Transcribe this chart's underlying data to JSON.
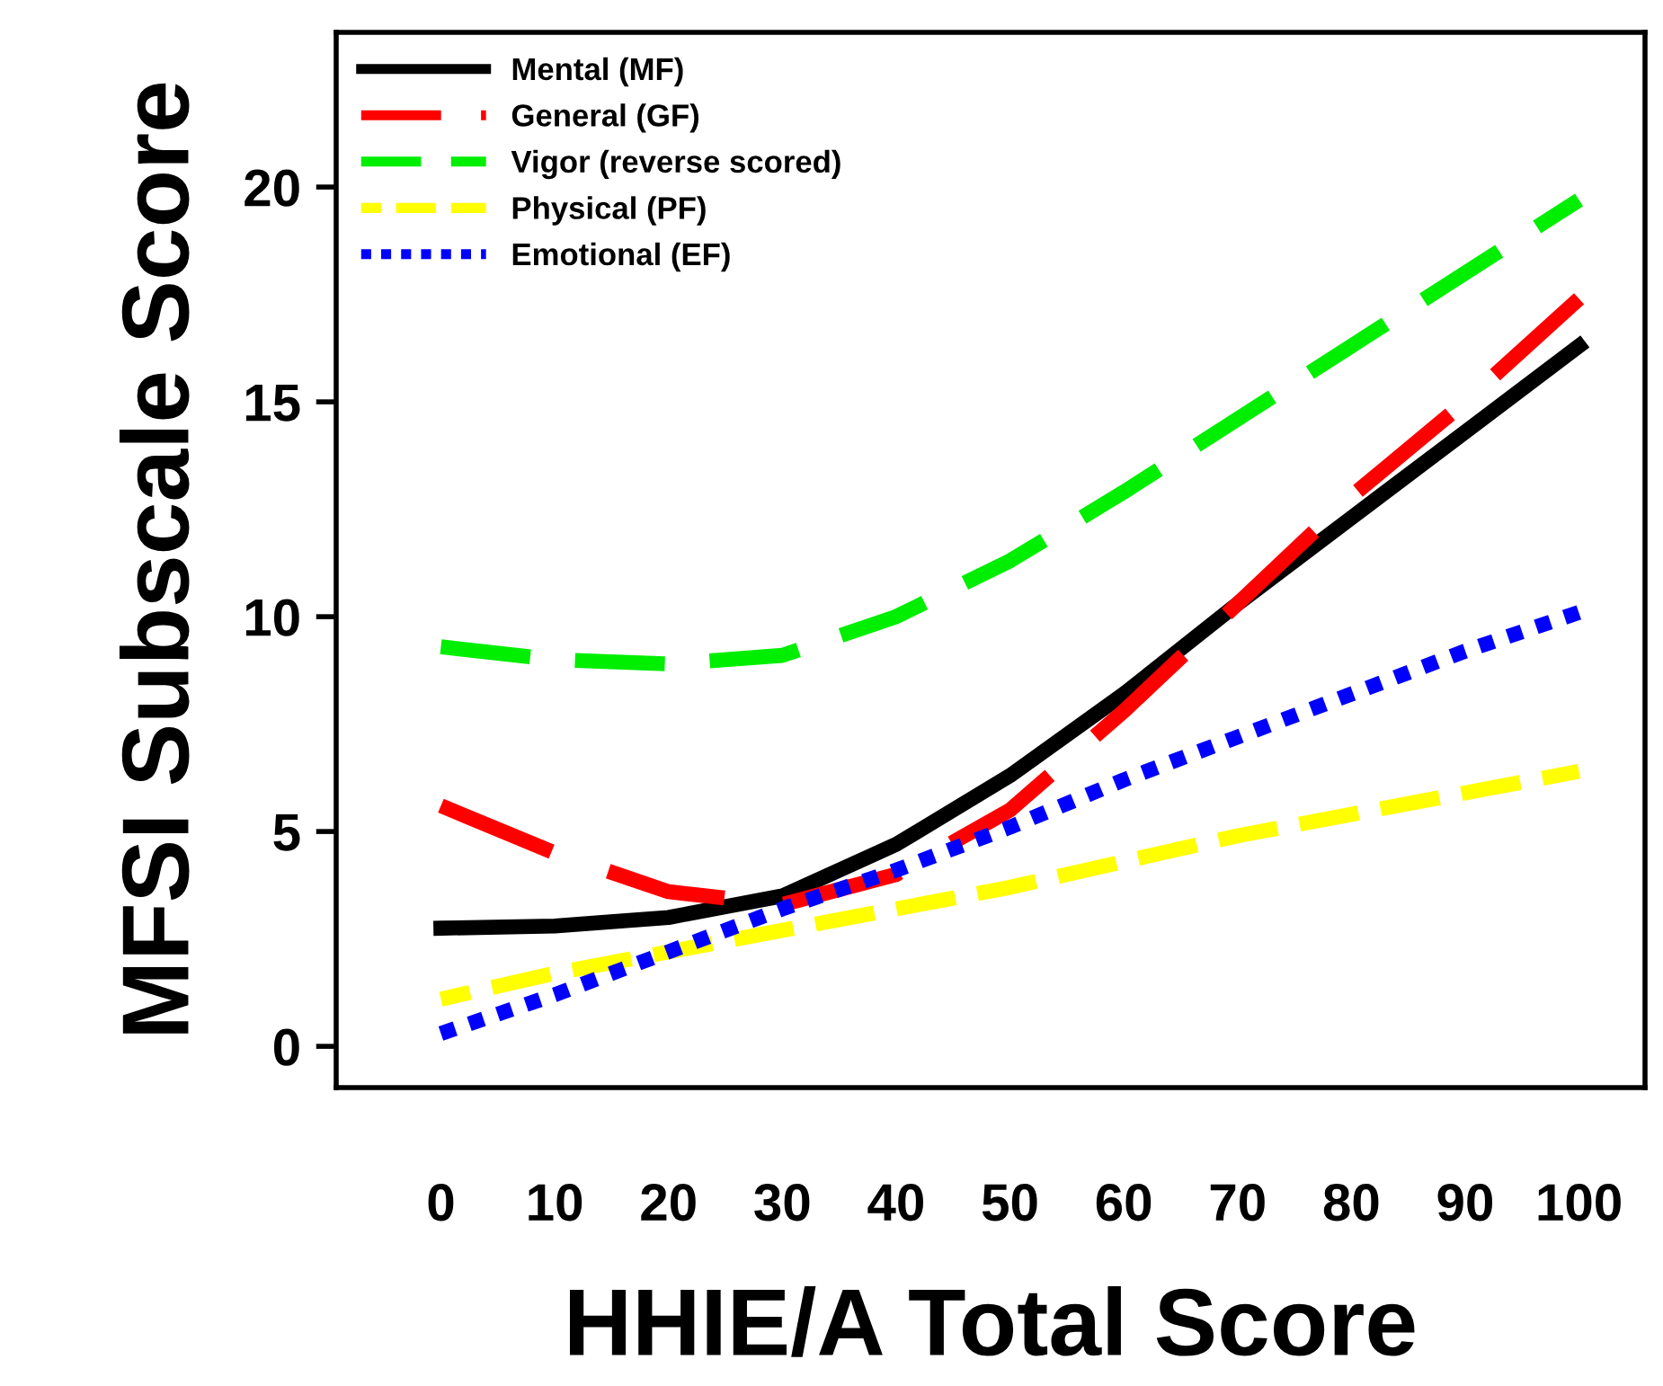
{
  "chart_data": {
    "type": "line",
    "xlabel": "HHIE/A Total Score",
    "ylabel": "MFSI Subscale Score",
    "x": [
      0,
      10,
      20,
      30,
      40,
      50,
      60,
      70,
      80,
      90,
      100
    ],
    "xlim": [
      -9.2,
      105.8
    ],
    "xticks": [
      0,
      10,
      20,
      30,
      40,
      50,
      60,
      70,
      80,
      90,
      100
    ],
    "ylim": [
      -0.96,
      23.6
    ],
    "yticks": [
      0,
      5,
      10,
      15,
      20
    ],
    "grid": false,
    "legend": "top left",
    "marker": "none",
    "series": [
      {
        "name": "Mental (MF)",
        "color": "#000000",
        "line_style": "solid",
        "values": [
          2.75,
          2.8,
          3.0,
          3.5,
          4.7,
          6.3,
          8.2,
          10.3,
          12.3,
          14.3,
          16.3
        ]
      },
      {
        "name": "General (GF)",
        "color": "#ff0000",
        "line_style": "dashed",
        "values": [
          5.6,
          4.5,
          3.6,
          3.3,
          4.0,
          5.5,
          7.8,
          10.3,
          12.8,
          15.0,
          17.4
        ]
      },
      {
        "name": "Vigor (reverse scored)",
        "color": "#00ee00",
        "line_style": "dashed",
        "values": [
          9.3,
          9.0,
          8.9,
          9.1,
          10.0,
          11.3,
          12.9,
          14.6,
          16.3,
          18.0,
          19.7
        ]
      },
      {
        "name": "Physical (PF)",
        "color": "#ffff00",
        "line_style": "dashed",
        "values": [
          1.1,
          1.7,
          2.2,
          2.7,
          3.2,
          3.7,
          4.3,
          4.9,
          5.4,
          5.9,
          6.4
        ]
      },
      {
        "name": "Emotional (EF)",
        "color": "#0000ff",
        "line_style": "dotted",
        "values": [
          0.3,
          1.2,
          2.2,
          3.2,
          4.1,
          5.1,
          6.2,
          7.2,
          8.2,
          9.2,
          10.1
        ]
      }
    ]
  }
}
